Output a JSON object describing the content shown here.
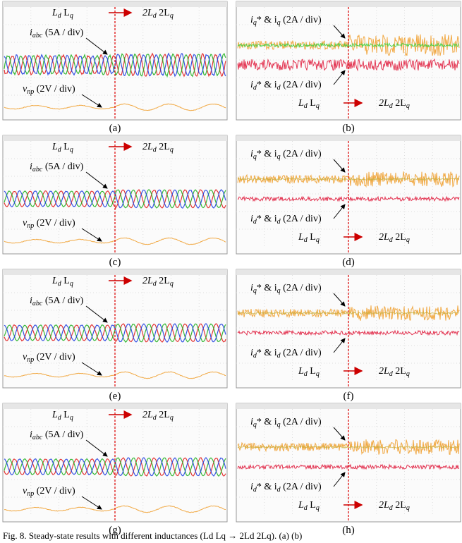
{
  "figure": {
    "panels": [
      {
        "label": "(a)",
        "side": "left",
        "before": [
          "L",
          "d",
          " L",
          "q"
        ],
        "after": [
          "2L",
          "d",
          " 2L",
          "q"
        ],
        "current": [
          "i",
          "abc",
          " (5A / div)"
        ],
        "voltage": [
          "v",
          "np",
          " (2V / div)"
        ]
      },
      {
        "label": "(b)",
        "side": "right",
        "before": [
          "L",
          "d",
          " L",
          "q"
        ],
        "after": [
          "2L",
          "d",
          " 2L",
          "q"
        ],
        "iq": [
          "i",
          "q",
          "* & i",
          "q",
          " (2A / div)"
        ],
        "id": [
          "i",
          "d",
          "* & i",
          "d",
          " (2A / div)"
        ]
      },
      {
        "label": "(c)",
        "side": "left",
        "before": [
          "L",
          "d",
          " L",
          "q"
        ],
        "after": [
          "2L",
          "d",
          " 2L",
          "q"
        ],
        "current": [
          "i",
          "abc",
          " (5A / div)"
        ],
        "voltage": [
          "v",
          "np",
          " (2V / div)"
        ]
      },
      {
        "label": "(d)",
        "side": "right",
        "before": [
          "L",
          "d",
          " L",
          "q"
        ],
        "after": [
          "2L",
          "d",
          " 2L",
          "q"
        ],
        "iq": [
          "i",
          "q",
          "* & i",
          "q",
          " (2A / div)"
        ],
        "id": [
          "i",
          "d",
          "* & i",
          "d",
          " (2A / div)"
        ]
      },
      {
        "label": "(e)",
        "side": "left",
        "before": [
          "L",
          "d",
          " L",
          "q"
        ],
        "after": [
          "2L",
          "d",
          " 2L",
          "q"
        ],
        "current": [
          "i",
          "abc",
          " (5A / div)"
        ],
        "voltage": [
          "v",
          "np",
          " (2V / div)"
        ]
      },
      {
        "label": "(f)",
        "side": "right",
        "before": [
          "L",
          "d",
          " L",
          "q"
        ],
        "after": [
          "2L",
          "d",
          " 2L",
          "q"
        ],
        "iq": [
          "i",
          "q",
          "* & i",
          "q",
          " (2A / div)"
        ],
        "id": [
          "i",
          "d",
          "* & i",
          "d",
          " (2A / div)"
        ]
      },
      {
        "label": "(g)",
        "side": "left",
        "before": [
          "L",
          "d",
          " L",
          "q"
        ],
        "after": [
          "2L",
          "d",
          " 2L",
          "q"
        ],
        "current": [
          "i",
          "abc",
          " (5A / div)"
        ],
        "voltage": [
          "v",
          "np",
          " (2V / div)"
        ]
      },
      {
        "label": "(h)",
        "side": "right",
        "before": [
          "L",
          "d",
          " L",
          "q"
        ],
        "after": [
          "2L",
          "d",
          " 2L",
          "q"
        ],
        "iq": [
          "i",
          "q",
          "* & i",
          "q",
          " (2A / div)"
        ],
        "id": [
          "i",
          "d",
          "* & i",
          "d",
          " (2A / div)"
        ]
      }
    ],
    "caption": "Fig. 8. Steady-state results with different inductances (Ld Lq → 2Ld 2Lq). (a) (b)"
  }
}
